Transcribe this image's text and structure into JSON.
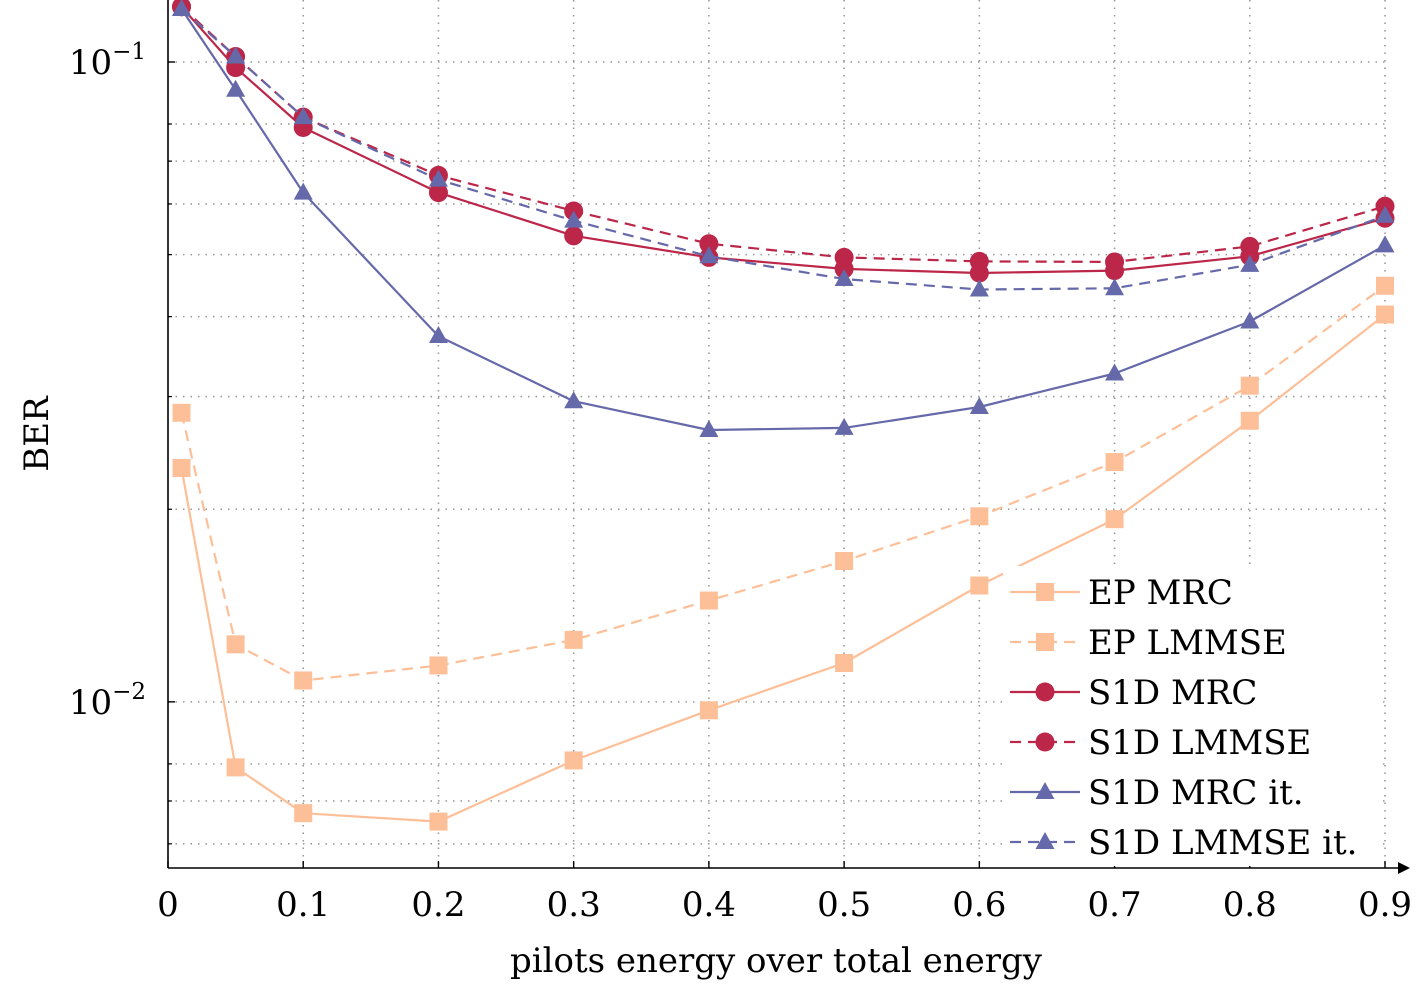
{
  "chart_data": {
    "type": "line",
    "title": "",
    "xlabel": "pilots energy over total energy",
    "ylabel": "BER",
    "xlim": [
      0,
      0.9
    ],
    "ylim": [
      0.0055,
      0.125
    ],
    "yscale": "log",
    "grid": true,
    "legend_position": "bottom-right",
    "x_ticks": [
      {
        "value": 0,
        "label": "0"
      },
      {
        "value": 0.1,
        "label": "0.1"
      },
      {
        "value": 0.2,
        "label": "0.2"
      },
      {
        "value": 0.3,
        "label": "0.3"
      },
      {
        "value": 0.4,
        "label": "0.4"
      },
      {
        "value": 0.5,
        "label": "0.5"
      },
      {
        "value": 0.6,
        "label": "0.6"
      },
      {
        "value": 0.7,
        "label": "0.7"
      },
      {
        "value": 0.8,
        "label": "0.8"
      },
      {
        "value": 0.9,
        "label": "0.9"
      }
    ],
    "y_ticks": [
      {
        "value": 0.1,
        "base": "10",
        "exp": "−1"
      },
      {
        "value": 0.01,
        "base": "10",
        "exp": "−2"
      }
    ],
    "y_minor_grid": [
      0.006,
      0.007,
      0.008,
      0.02,
      0.03,
      0.04,
      0.05,
      0.06,
      0.07,
      0.08
    ],
    "x": [
      0.01,
      0.05,
      0.1,
      0.2,
      0.3,
      0.4,
      0.5,
      0.6,
      0.7,
      0.8,
      0.9
    ],
    "series": [
      {
        "name": "EP MRC",
        "color": "#fdbf98",
        "dash": "solid",
        "marker": "square",
        "values": [
          0.0232,
          0.0079,
          0.0067,
          0.0065,
          0.0081,
          0.0097,
          0.0115,
          0.0152,
          0.0193,
          0.0275,
          0.0403
        ]
      },
      {
        "name": "EP LMMSE",
        "color": "#fdbf98",
        "dash": "dashed",
        "marker": "square",
        "values": [
          0.0283,
          0.0123,
          0.0108,
          0.0114,
          0.0125,
          0.0144,
          0.0166,
          0.0195,
          0.0237,
          0.0312,
          0.0447
        ]
      },
      {
        "name": "S1D MRC",
        "color": "#bb2649",
        "dash": "solid",
        "marker": "circle",
        "values": [
          0.122,
          0.098,
          0.079,
          0.0625,
          0.0535,
          0.0495,
          0.0475,
          0.0468,
          0.0472,
          0.0497,
          0.057
        ]
      },
      {
        "name": "S1D LMMSE",
        "color": "#bb2649",
        "dash": "dashed",
        "marker": "circle",
        "values": [
          0.122,
          0.102,
          0.082,
          0.0665,
          0.0585,
          0.052,
          0.0495,
          0.0488,
          0.0487,
          0.0515,
          0.0595
        ]
      },
      {
        "name": "S1D MRC it.",
        "color": "#6569a9",
        "dash": "solid",
        "marker": "triangle",
        "values": [
          0.121,
          0.0905,
          0.0625,
          0.0373,
          0.0295,
          0.0266,
          0.0268,
          0.0289,
          0.0326,
          0.0393,
          0.0517
        ]
      },
      {
        "name": "S1D LMMSE it.",
        "color": "#6569a9",
        "dash": "dashed",
        "marker": "triangle",
        "values": [
          0.121,
          0.102,
          0.082,
          0.0655,
          0.0565,
          0.0497,
          0.0458,
          0.0441,
          0.0443,
          0.0482,
          0.0575
        ]
      }
    ]
  }
}
